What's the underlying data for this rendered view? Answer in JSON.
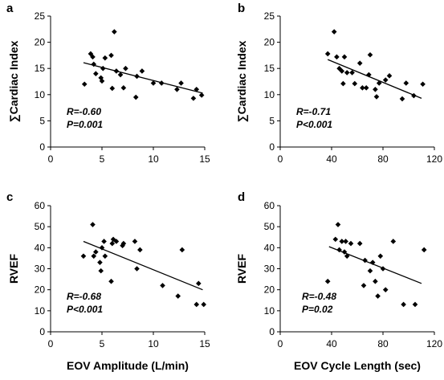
{
  "chart_data": [
    {
      "type": "scatter",
      "panel_label": "a",
      "xlabel": "",
      "ylabel": "∑Cardiac Index",
      "xlim": [
        0,
        15
      ],
      "ylim": [
        0,
        25
      ],
      "xticks": [
        "0",
        "5",
        "10",
        "15"
      ],
      "yticks": [
        "0",
        "5",
        "10",
        "15",
        "20",
        "25"
      ],
      "stats": [
        "R=-0.60",
        "P=0.001"
      ],
      "trendline": {
        "x": [
          3.2,
          14.8
        ],
        "y": [
          16.1,
          10.3
        ]
      },
      "points": [
        [
          3.3,
          12.0
        ],
        [
          3.9,
          17.8
        ],
        [
          4.1,
          17.2
        ],
        [
          4.2,
          15.8
        ],
        [
          4.4,
          14.0
        ],
        [
          4.9,
          13.2
        ],
        [
          5.0,
          12.6
        ],
        [
          5.1,
          15.0
        ],
        [
          5.3,
          17.0
        ],
        [
          5.9,
          17.5
        ],
        [
          6.0,
          11.2
        ],
        [
          6.2,
          22.0
        ],
        [
          6.4,
          14.5
        ],
        [
          6.8,
          13.8
        ],
        [
          7.1,
          11.3
        ],
        [
          7.3,
          15.0
        ],
        [
          8.3,
          9.5
        ],
        [
          8.4,
          13.5
        ],
        [
          8.9,
          14.5
        ],
        [
          10.0,
          12.2
        ],
        [
          10.8,
          12.2
        ],
        [
          12.3,
          11.0
        ],
        [
          12.7,
          12.2
        ],
        [
          13.9,
          9.3
        ],
        [
          14.2,
          11.0
        ],
        [
          14.7,
          9.9
        ]
      ]
    },
    {
      "type": "scatter",
      "panel_label": "b",
      "xlabel": "",
      "ylabel": "∑Cardiac Index",
      "xlim": [
        0,
        120
      ],
      "ylim": [
        0,
        25
      ],
      "xticks": [
        "0",
        "40",
        "80",
        "120"
      ],
      "yticks": [
        "0",
        "5",
        "10",
        "15",
        "20",
        "25"
      ],
      "stats": [
        "R=-0.71",
        "P<0.001"
      ],
      "trendline": {
        "x": [
          37,
          110
        ],
        "y": [
          16.7,
          9.3
        ]
      },
      "points": [
        [
          37,
          17.8
        ],
        [
          42,
          22.0
        ],
        [
          44,
          17.2
        ],
        [
          46,
          15.0
        ],
        [
          48,
          14.5
        ],
        [
          49,
          12.1
        ],
        [
          50,
          17.2
        ],
        [
          52,
          14.2
        ],
        [
          56,
          14.2
        ],
        [
          58,
          12.1
        ],
        [
          62,
          16.0
        ],
        [
          64,
          11.3
        ],
        [
          67,
          11.3
        ],
        [
          69,
          13.8
        ],
        [
          70,
          17.6
        ],
        [
          74,
          11.0
        ],
        [
          75,
          9.6
        ],
        [
          77,
          12.2
        ],
        [
          82,
          12.8
        ],
        [
          85,
          13.6
        ],
        [
          95,
          9.2
        ],
        [
          98,
          12.2
        ],
        [
          104,
          9.8
        ],
        [
          111,
          12.0
        ]
      ]
    },
    {
      "type": "scatter",
      "panel_label": "c",
      "xlabel": "EOV Amplitude (L/min)",
      "ylabel": "RVEF",
      "xlim": [
        0,
        15
      ],
      "ylim": [
        0,
        60
      ],
      "xticks": [
        "0",
        "5",
        "10",
        "15"
      ],
      "yticks": [
        "0",
        "10",
        "20",
        "30",
        "40",
        "50",
        "60"
      ],
      "stats": [
        "R=-0.68",
        "P<0.001"
      ],
      "trendline": {
        "x": [
          3.2,
          14.8
        ],
        "y": [
          43,
          20
        ]
      },
      "points": [
        [
          3.2,
          36
        ],
        [
          4.1,
          51
        ],
        [
          4.2,
          36
        ],
        [
          4.4,
          38
        ],
        [
          4.8,
          33
        ],
        [
          4.9,
          29
        ],
        [
          5.0,
          40
        ],
        [
          5.2,
          43
        ],
        [
          5.3,
          36
        ],
        [
          5.9,
          24
        ],
        [
          6.0,
          42
        ],
        [
          6.1,
          44
        ],
        [
          6.4,
          43
        ],
        [
          7.0,
          41
        ],
        [
          7.1,
          42
        ],
        [
          8.2,
          43
        ],
        [
          8.4,
          30
        ],
        [
          8.7,
          39
        ],
        [
          10.9,
          22
        ],
        [
          12.4,
          17
        ],
        [
          12.8,
          39
        ],
        [
          14.2,
          13
        ],
        [
          14.4,
          23
        ],
        [
          14.9,
          13
        ]
      ]
    },
    {
      "type": "scatter",
      "panel_label": "d",
      "xlabel": "EOV Cycle Length (sec)",
      "ylabel": "RVEF",
      "xlim": [
        0,
        120
      ],
      "ylim": [
        0,
        60
      ],
      "xticks": [
        "0",
        "40",
        "80",
        "120"
      ],
      "yticks": [
        "0",
        "10",
        "20",
        "30",
        "40",
        "50",
        "60"
      ],
      "stats": [
        "R=-0.48",
        "P=0.02"
      ],
      "trendline": {
        "x": [
          38,
          110
        ],
        "y": [
          40.5,
          23
        ]
      },
      "points": [
        [
          37,
          24
        ],
        [
          43,
          44
        ],
        [
          45,
          51
        ],
        [
          46,
          39
        ],
        [
          48,
          43
        ],
        [
          50,
          38
        ],
        [
          51,
          43
        ],
        [
          52,
          36
        ],
        [
          55,
          42
        ],
        [
          62,
          42
        ],
        [
          65,
          22
        ],
        [
          66,
          34
        ],
        [
          70,
          29
        ],
        [
          72,
          33
        ],
        [
          74,
          24
        ],
        [
          76,
          17
        ],
        [
          78,
          36
        ],
        [
          80,
          30
        ],
        [
          82,
          20
        ],
        [
          88,
          43
        ],
        [
          96,
          13
        ],
        [
          105,
          13
        ],
        [
          112,
          39
        ]
      ]
    }
  ]
}
